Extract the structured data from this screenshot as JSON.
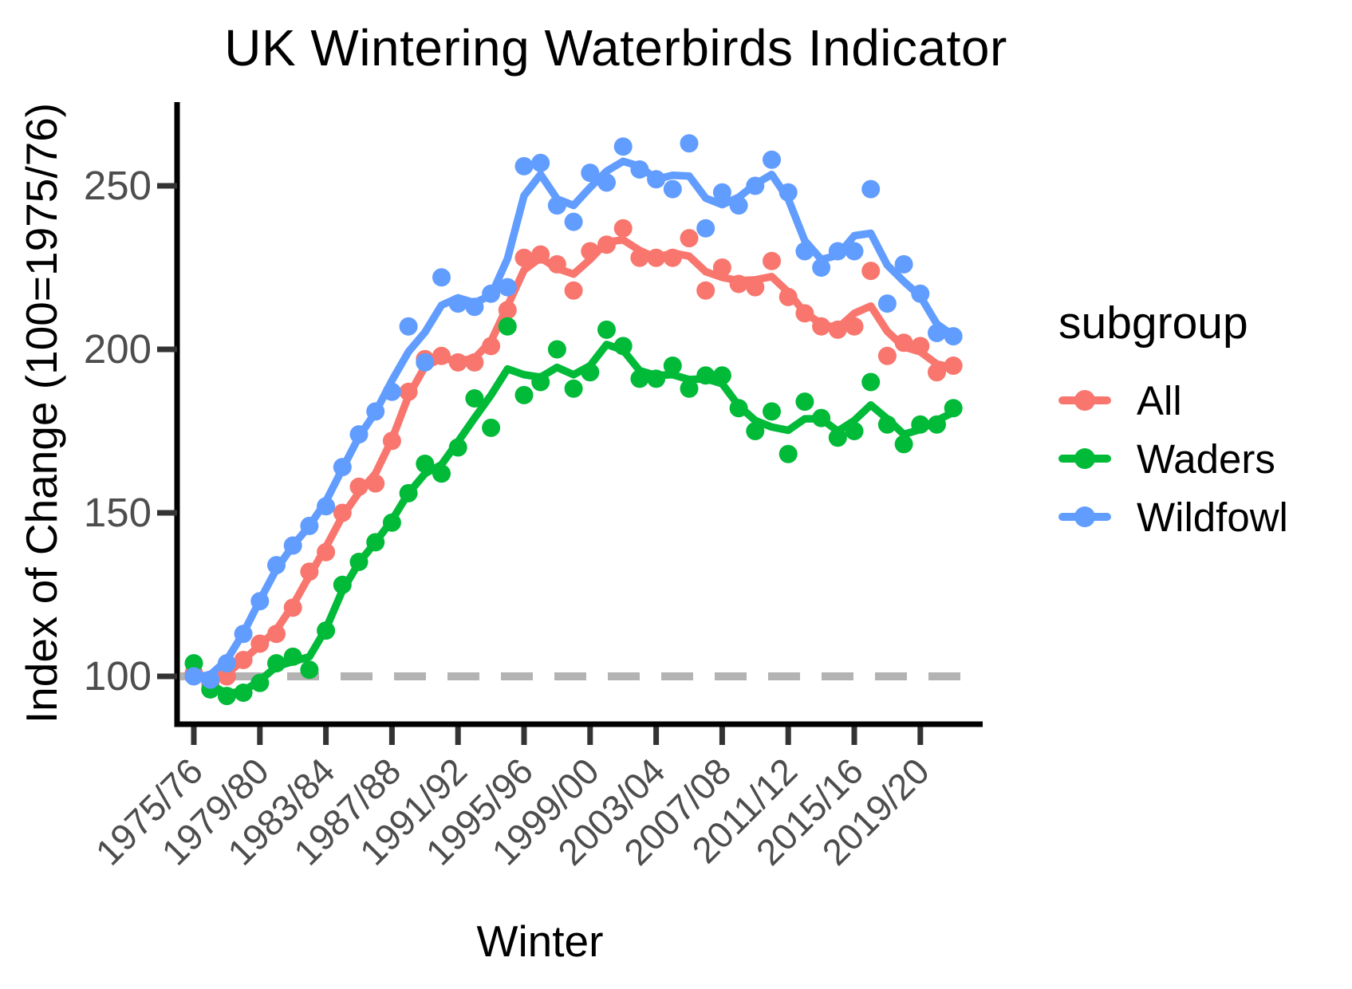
{
  "chart_data": {
    "type": "scatter",
    "smoothing": "loess",
    "title": "UK Wintering Waterbirds Indicator",
    "xlabel": "Winter",
    "ylabel": "Index of Change (100=1975/76)",
    "ylim": [
      88,
      275
    ],
    "grid": "off",
    "legend_title": "subgroup",
    "legend_position": "right",
    "y_ticks": [
      100,
      150,
      200,
      250
    ],
    "x_tick_every": 4,
    "x_tick_labels": [
      "1975/76",
      "1979/80",
      "1983/84",
      "1987/88",
      "1991/92",
      "1995/96",
      "1999/00",
      "2003/04",
      "2007/08",
      "2011/12",
      "2015/16",
      "2019/20"
    ],
    "winters": [
      "1975/76",
      "1976/77",
      "1977/78",
      "1978/79",
      "1979/80",
      "1980/81",
      "1981/82",
      "1982/83",
      "1983/84",
      "1984/85",
      "1985/86",
      "1986/87",
      "1987/88",
      "1988/89",
      "1989/90",
      "1990/91",
      "1991/92",
      "1992/93",
      "1993/94",
      "1994/95",
      "1995/96",
      "1996/97",
      "1997/98",
      "1998/99",
      "1999/00",
      "2000/01",
      "2001/02",
      "2002/03",
      "2003/04",
      "2004/05",
      "2005/06",
      "2006/07",
      "2007/08",
      "2008/09",
      "2009/10",
      "2010/11",
      "2011/12",
      "2012/13",
      "2013/14",
      "2014/15",
      "2015/16",
      "2016/17",
      "2017/18",
      "2018/19",
      "2019/20",
      "2020/21",
      "2021/22"
    ],
    "reference_line": {
      "y": 100,
      "style": "dashed",
      "color": "#b3b3b3"
    },
    "axis_color": "#000000",
    "tick_text_color": "#4d4d4d",
    "series": [
      {
        "name": "All",
        "color": "#F8766D",
        "values": [
          101,
          98,
          100,
          105,
          110,
          113,
          121,
          132,
          138,
          150,
          158,
          159,
          172,
          187,
          197,
          198,
          196,
          196,
          201,
          212,
          228,
          229,
          226,
          218,
          230,
          232,
          237,
          228,
          228,
          228,
          234,
          218,
          225,
          220,
          219,
          227,
          216,
          211,
          207,
          206,
          207,
          224,
          198,
          202,
          201,
          193,
          195
        ]
      },
      {
        "name": "Waders",
        "color": "#00BA38",
        "values": [
          104,
          96,
          94,
          95,
          98,
          104,
          106,
          102,
          114,
          128,
          135,
          141,
          147,
          156,
          165,
          162,
          170,
          185,
          176,
          207,
          186,
          190,
          200,
          188,
          193,
          206,
          201,
          191,
          191,
          195,
          188,
          192,
          192,
          182,
          175,
          181,
          168,
          184,
          179,
          173,
          175,
          190,
          177,
          171,
          177,
          177,
          182
        ]
      },
      {
        "name": "Wildfowl",
        "color": "#619CFF",
        "values": [
          100,
          99,
          104,
          113,
          123,
          134,
          140,
          146,
          152,
          164,
          174,
          181,
          187,
          207,
          196,
          222,
          214,
          213,
          217,
          219,
          256,
          257,
          244,
          239,
          254,
          251,
          262,
          255,
          252,
          249,
          263,
          237,
          248,
          244,
          250,
          258,
          248,
          230,
          225,
          230,
          230,
          249,
          214,
          226,
          217,
          205,
          204
        ]
      }
    ]
  }
}
